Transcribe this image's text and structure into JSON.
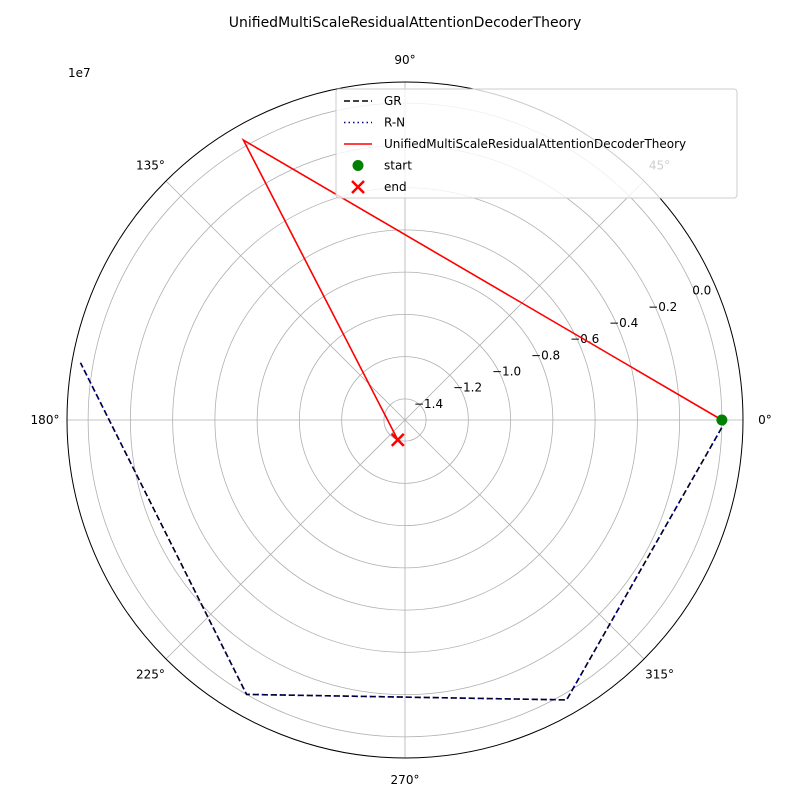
{
  "chart_data": {
    "type": "line",
    "projection": "polar",
    "title": "UnifiedMultiScaleResidualAttentionDecoderTheory",
    "radial_offset_label": "1e7",
    "rlim": [
      -1.5,
      0.1
    ],
    "theta_tick_labels": [
      "0°",
      "45°",
      "90°",
      "135°",
      "180°",
      "225°",
      "270°",
      "315°"
    ],
    "theta_tick_angles_deg": [
      0,
      45,
      90,
      135,
      180,
      225,
      270,
      315
    ],
    "radial_ticks": [
      -1.4,
      -1.2,
      -1.0,
      -0.8,
      -0.6,
      -0.4,
      -0.2,
      0.0
    ],
    "radial_tick_labels": [
      "−1.4",
      "−1.2",
      "−1.0",
      "−0.8",
      "−0.6",
      "−0.4",
      "−0.2",
      "0.0"
    ],
    "radial_label_angle_deg": 22.5,
    "grid": true,
    "legend_position": "top-right",
    "series": [
      {
        "name": "GR",
        "color": "#000000",
        "style": "dashed",
        "points": [
          {
            "theta": 0,
            "r": 0.02
          },
          {
            "theta": 300,
            "r": 0.03
          },
          {
            "theta": 240,
            "r": 0.0
          },
          {
            "theta": 170,
            "r": 0.06
          }
        ]
      },
      {
        "name": "R-N",
        "color": "#00008b",
        "style": "dotted",
        "points": [
          {
            "theta": 0,
            "r": 0.02
          },
          {
            "theta": 300,
            "r": 0.03
          },
          {
            "theta": 240,
            "r": 0.0
          },
          {
            "theta": 170,
            "r": 0.06
          }
        ]
      },
      {
        "name": "UnifiedMultiScaleResidualAttentionDecoderTheory",
        "color": "#ff0000",
        "style": "solid",
        "points": [
          {
            "theta": 0,
            "r": 0.0
          },
          {
            "theta": 120,
            "r": 0.03
          },
          {
            "theta": 250,
            "r": -1.4
          }
        ]
      }
    ],
    "markers": [
      {
        "name": "start",
        "shape": "circle",
        "color": "#008000",
        "theta": 0,
        "r": 0.0
      },
      {
        "name": "end",
        "shape": "x",
        "color": "#ff0000",
        "theta": 250,
        "r": -1.4
      }
    ]
  }
}
